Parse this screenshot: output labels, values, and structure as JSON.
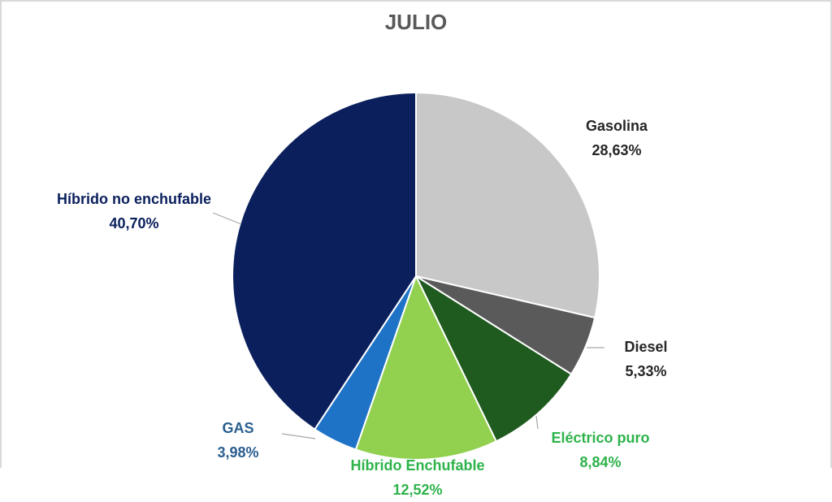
{
  "chart_data": {
    "type": "pie",
    "title": "JULIO",
    "slices": [
      {
        "label": "Gasolina",
        "value": 28.63,
        "value_text": "28,63%",
        "color": "#c8c8c8",
        "label_color": "#262626"
      },
      {
        "label": "Diesel",
        "value": 5.33,
        "value_text": "5,33%",
        "color": "#5a5a5a",
        "label_color": "#262626"
      },
      {
        "label": "Eléctrico puro",
        "value": 8.84,
        "value_text": "8,84%",
        "color": "#1f5a1f",
        "label_color": "#2db34a"
      },
      {
        "label": "Híbrido Enchufable",
        "value": 12.52,
        "value_text": "12,52%",
        "color": "#92d050",
        "label_color": "#2db34a"
      },
      {
        "label": "GAS",
        "value": 3.98,
        "value_text": "3,98%",
        "color": "#1f73c6",
        "label_color": "#2a5f8f"
      },
      {
        "label": "Híbrido no enchufable",
        "value": 40.7,
        "value_text": "40,70%",
        "color": "#0a1f5c",
        "label_color": "#0a1f5c"
      }
    ]
  }
}
